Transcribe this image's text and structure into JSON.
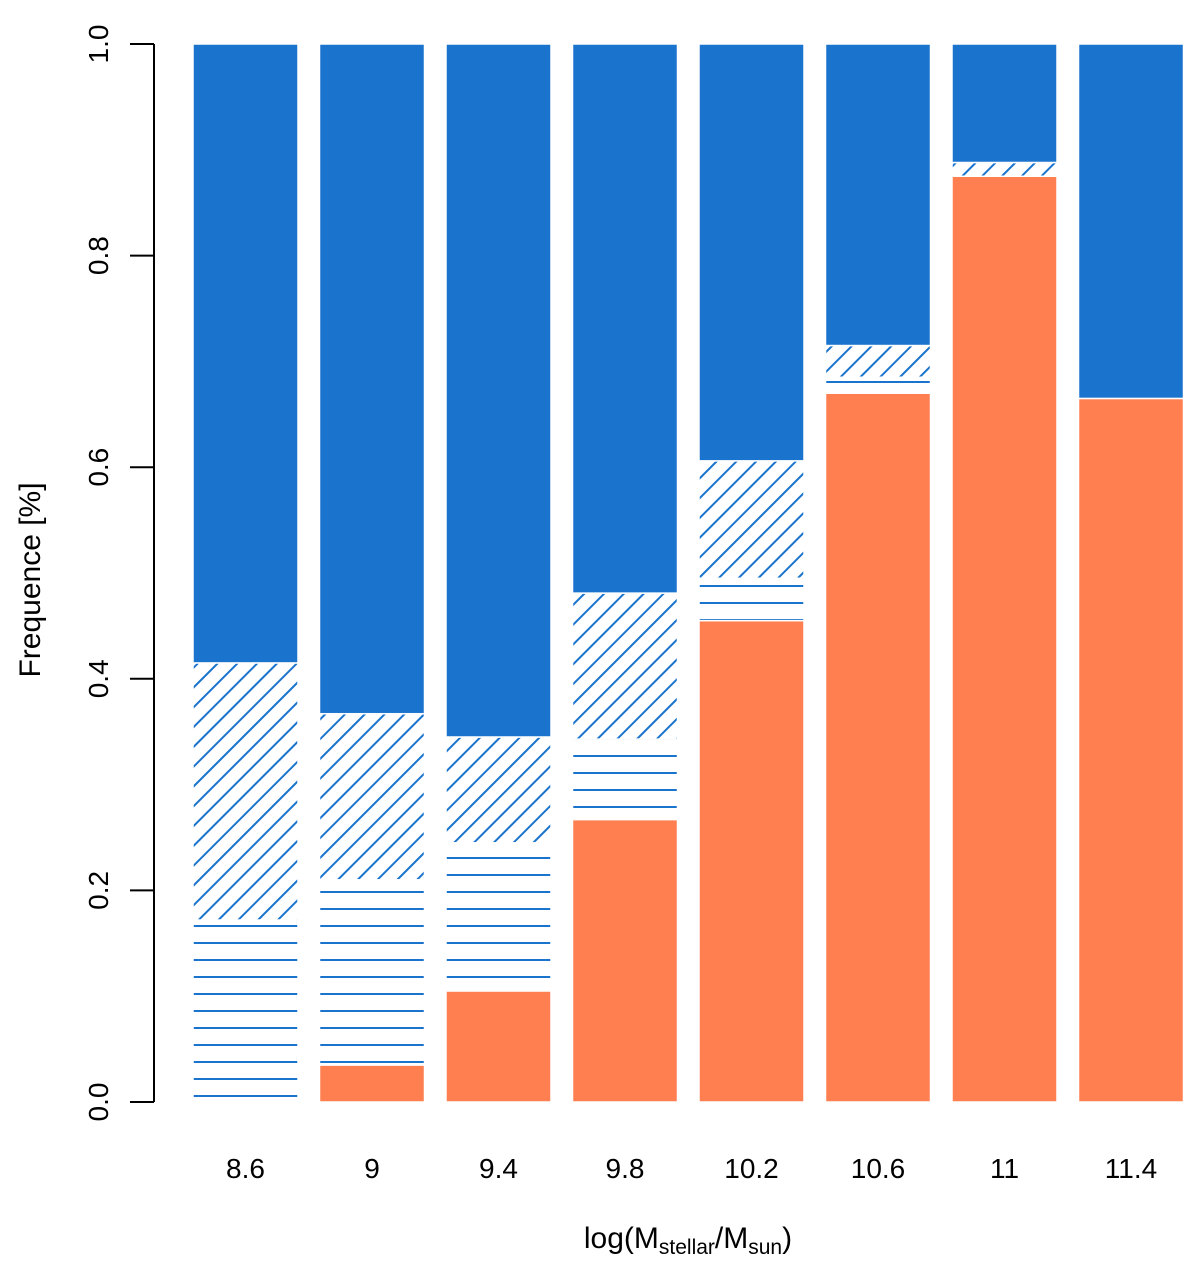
{
  "chart_data": {
    "type": "bar",
    "stacked": true,
    "xlabel_parts": {
      "prefix": "log(M",
      "sub1": "stellar",
      "middle": "/M",
      "sub2": "sun",
      "suffix": ")"
    },
    "ylabel": "Frequence [%]",
    "ylim": [
      0,
      1
    ],
    "yticks": [
      "0.0",
      "0.2",
      "0.4",
      "0.6",
      "0.8",
      "1.0"
    ],
    "categories": [
      "8.6",
      "9",
      "9.4",
      "9.8",
      "10.2",
      "10.6",
      "11",
      "11.4"
    ],
    "series": [
      {
        "name": "orange-solid",
        "pattern": "solid",
        "color": "#FF7F50",
        "values": [
          0.0,
          0.035,
          0.105,
          0.267,
          0.455,
          0.67,
          0.875,
          0.665
        ]
      },
      {
        "name": "blue-horizontal-lines",
        "pattern": "horizontal",
        "color": "#1A73CC",
        "values": [
          0.172,
          0.175,
          0.14,
          0.076,
          0.04,
          0.015,
          0.0,
          0.0
        ]
      },
      {
        "name": "blue-diagonal-hatch",
        "pattern": "diagonal",
        "color": "#1A73CC",
        "values": [
          0.243,
          0.157,
          0.1,
          0.138,
          0.111,
          0.03,
          0.013,
          0.0
        ]
      },
      {
        "name": "blue-solid",
        "pattern": "solid",
        "color": "#1A73CC",
        "values": [
          0.585,
          0.633,
          0.655,
          0.519,
          0.394,
          0.285,
          0.112,
          0.335
        ]
      }
    ]
  }
}
